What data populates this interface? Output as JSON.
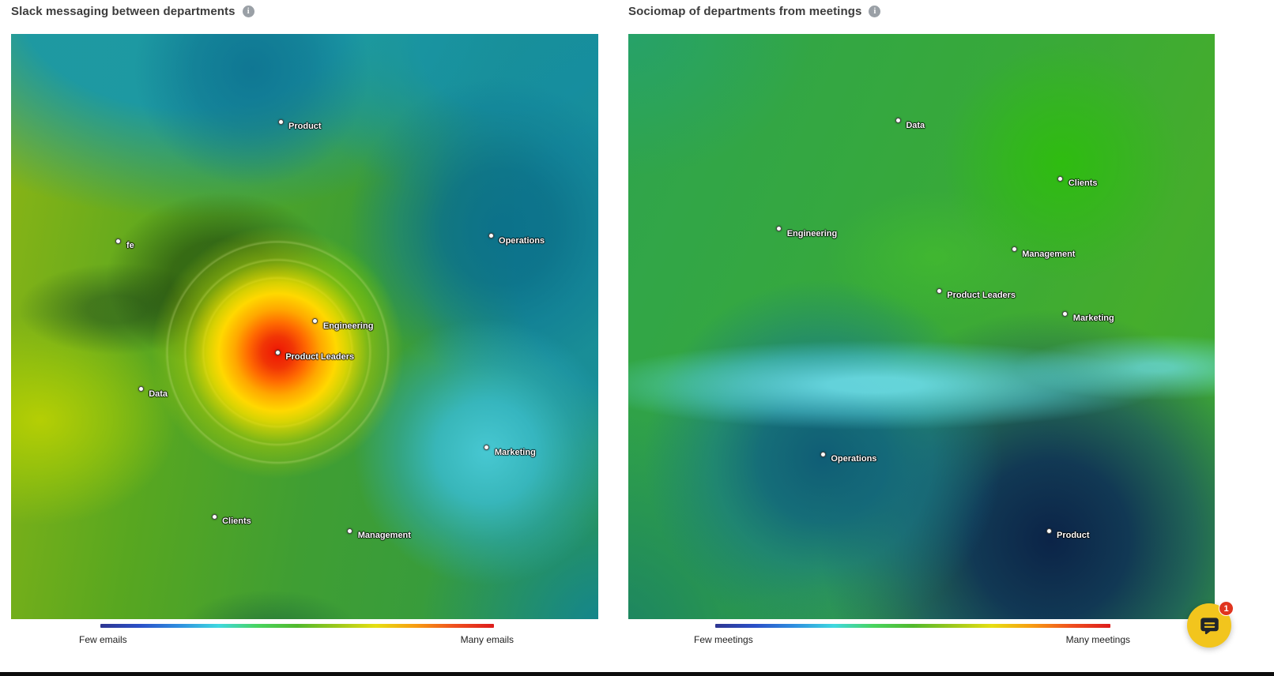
{
  "icons": {
    "info_glyph": "i"
  },
  "chat_widget": {
    "badge_count": "1"
  },
  "chart_data": [
    {
      "type": "heatmap",
      "variant": "sociomap-density-landscape",
      "title": "Slack messaging between departments",
      "legend": {
        "min_label": "Few emails",
        "max_label": "Many emails",
        "colormap": [
          "#2e3691",
          "#2b50c8",
          "#2f8fe0",
          "#3fd8e0",
          "#49d45f",
          "#52b92e",
          "#9cc81c",
          "#e6df12",
          "#f79d12",
          "#ef501f",
          "#dd1c1c"
        ]
      },
      "points": [
        {
          "label": "Product",
          "x_pct": 45.9,
          "y_pct": 15.0,
          "local_density": "low"
        },
        {
          "label": "fe",
          "x_pct": 18.3,
          "y_pct": 35.4,
          "local_density": "low-medium"
        },
        {
          "label": "Operations",
          "x_pct": 81.7,
          "y_pct": 34.5,
          "local_density": "low"
        },
        {
          "label": "Engineering",
          "x_pct": 51.8,
          "y_pct": 49.1,
          "local_density": "high"
        },
        {
          "label": "Product Leaders",
          "x_pct": 45.4,
          "y_pct": 54.4,
          "local_density": "very-high"
        },
        {
          "label": "Data",
          "x_pct": 22.1,
          "y_pct": 60.7,
          "local_density": "medium-high"
        },
        {
          "label": "Marketing",
          "x_pct": 81.0,
          "y_pct": 70.7,
          "local_density": "low"
        },
        {
          "label": "Clients",
          "x_pct": 34.6,
          "y_pct": 82.5,
          "local_density": "medium"
        },
        {
          "label": "Management",
          "x_pct": 57.7,
          "y_pct": 84.9,
          "local_density": "medium"
        }
      ]
    },
    {
      "type": "heatmap",
      "variant": "sociomap-density-landscape",
      "title": "Sociomap of departments from meetings",
      "legend": {
        "min_label": "Few meetings",
        "max_label": "Many meetings",
        "colormap": [
          "#2e3691",
          "#2b50c8",
          "#2f8fe0",
          "#3fd8e0",
          "#49d45f",
          "#52b92e",
          "#9cc81c",
          "#e6df12",
          "#f79d12",
          "#ef501f",
          "#dd1c1c"
        ]
      },
      "points": [
        {
          "label": "Data",
          "x_pct": 46.0,
          "y_pct": 14.8,
          "local_density": "medium"
        },
        {
          "label": "Clients",
          "x_pct": 73.7,
          "y_pct": 24.7,
          "local_density": "medium-high"
        },
        {
          "label": "Engineering",
          "x_pct": 25.7,
          "y_pct": 33.3,
          "local_density": "medium"
        },
        {
          "label": "Management",
          "x_pct": 65.8,
          "y_pct": 36.8,
          "local_density": "medium"
        },
        {
          "label": "Product Leaders",
          "x_pct": 53.0,
          "y_pct": 43.9,
          "local_density": "medium"
        },
        {
          "label": "Marketing",
          "x_pct": 74.5,
          "y_pct": 47.8,
          "local_density": "medium"
        },
        {
          "label": "Operations",
          "x_pct": 33.2,
          "y_pct": 71.8,
          "local_density": "low"
        },
        {
          "label": "Product",
          "x_pct": 71.7,
          "y_pct": 84.9,
          "local_density": "very-low"
        }
      ]
    }
  ]
}
